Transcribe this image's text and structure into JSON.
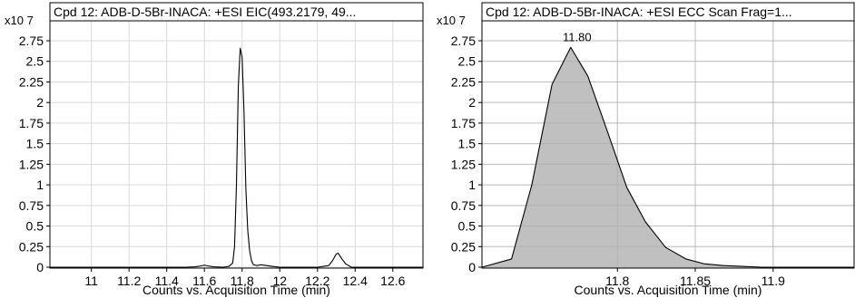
{
  "chart_data": [
    {
      "type": "line",
      "title": "Cpd 12: ADB-D-5Br-INACA: +ESI EIC(493.2179, 49...",
      "y_multiplier": "x10 7",
      "xlabel": "Counts vs. Acquisition Time (min)",
      "ylabel": "",
      "xlim": [
        10.78,
        12.76
      ],
      "ylim": [
        0,
        2.9
      ],
      "x_ticks": [
        11,
        11.2,
        11.4,
        11.6,
        11.8,
        12,
        12.2,
        12.4,
        12.6
      ],
      "x_tick_labels": [
        "11",
        "11.2",
        "11.4",
        "11.6",
        "11.8",
        "12",
        "12.2",
        "12.4",
        "12.6"
      ],
      "y_ticks": [
        0,
        0.25,
        0.5,
        0.75,
        1,
        1.25,
        1.5,
        1.75,
        2,
        2.25,
        2.5,
        2.75
      ],
      "y_tick_labels": [
        "0",
        "0.25",
        "0.5",
        "0.75",
        "1",
        "1.25",
        "1.5",
        "1.75",
        "2",
        "2.25",
        "2.5",
        "2.75"
      ],
      "grid": true,
      "series": [
        {
          "color": "#000000",
          "x": [
            10.78,
            11.5,
            11.55,
            11.58,
            11.6,
            11.62,
            11.65,
            11.7,
            11.73,
            11.75,
            11.76,
            11.77,
            11.78,
            11.79,
            11.8,
            11.81,
            11.82,
            11.83,
            11.84,
            11.85,
            11.86,
            11.88,
            11.9,
            11.93,
            11.96,
            12.0,
            12.2,
            12.26,
            12.28,
            12.3,
            12.31,
            12.33,
            12.35,
            12.38,
            12.76
          ],
          "y": [
            0.0,
            0.0,
            0.005,
            0.015,
            0.025,
            0.015,
            0.005,
            0.0,
            0.01,
            0.05,
            0.25,
            1.0,
            2.2,
            2.66,
            2.55,
            1.9,
            0.95,
            0.45,
            0.2,
            0.08,
            0.03,
            0.02,
            0.03,
            0.02,
            0.01,
            0.0,
            0.0,
            0.02,
            0.08,
            0.16,
            0.17,
            0.1,
            0.04,
            0.0,
            0.0
          ]
        }
      ]
    },
    {
      "type": "area",
      "title": "Cpd 12: ADB-D-5Br-INACA: +ESI ECC Scan Frag=1...",
      "y_multiplier": "x10 7",
      "xlabel": "Counts vs. Acquisition Time (min)",
      "ylabel": "",
      "xlim": [
        11.713,
        11.952
      ],
      "ylim": [
        0,
        2.9
      ],
      "x_ticks": [
        11.8,
        11.85,
        11.9
      ],
      "x_tick_labels": [
        "11.8",
        "11.85",
        "11.9"
      ],
      "y_ticks": [
        0,
        0.25,
        0.5,
        0.75,
        1,
        1.25,
        1.5,
        1.75,
        2,
        2.25,
        2.5,
        2.75
      ],
      "y_tick_labels": [
        "0",
        "0.25",
        "0.5",
        "0.75",
        "1",
        "1.25",
        "1.5",
        "1.75",
        "2",
        "2.25",
        "2.5",
        "2.75"
      ],
      "grid": true,
      "peak_label": "11.80",
      "series": [
        {
          "fill": "#c0c0c0",
          "color": "#000000",
          "x": [
            11.713,
            11.732,
            11.745,
            11.758,
            11.77,
            11.781,
            11.793,
            11.806,
            11.818,
            11.831,
            11.844,
            11.856,
            11.868,
            11.88,
            11.893,
            11.905,
            11.918,
            11.952
          ],
          "y": [
            0.0,
            0.1,
            1.0,
            2.22,
            2.67,
            2.32,
            1.68,
            0.97,
            0.55,
            0.24,
            0.1,
            0.04,
            0.02,
            0.01,
            0.0,
            0.0,
            0.0,
            0.0
          ]
        }
      ]
    }
  ]
}
